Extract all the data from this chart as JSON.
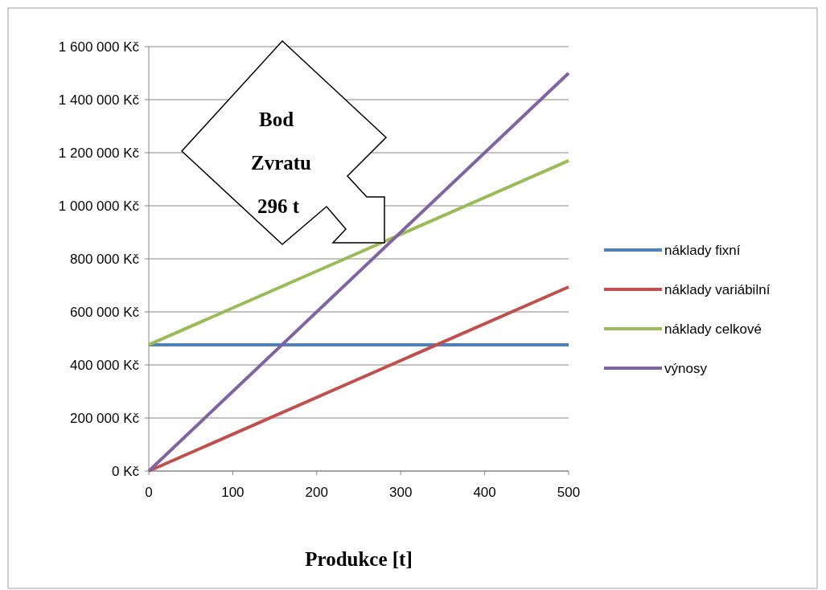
{
  "chart_data": {
    "type": "line",
    "xlabel": "Produkce [t]",
    "x": [
      0,
      500
    ],
    "series": [
      {
        "name": "náklady fixní",
        "color": "#4f81bd",
        "values": [
          476000,
          476000
        ]
      },
      {
        "name": "náklady variábilní",
        "color": "#c0504d",
        "values": [
          0,
          694000
        ]
      },
      {
        "name": "náklady celkové",
        "color": "#9bbb59",
        "values": [
          476000,
          1170000
        ]
      },
      {
        "name": "výnosy",
        "color": "#8064a2",
        "values": [
          0,
          1500000
        ]
      }
    ],
    "xlim": [
      0,
      500
    ],
    "xticks": [
      0,
      100,
      200,
      300,
      400,
      500
    ],
    "ylim": [
      0,
      1600000
    ],
    "yticks": [
      {
        "value": 0,
        "label": "0 Kč"
      },
      {
        "value": 200000,
        "label": "200 000 Kč"
      },
      {
        "value": 400000,
        "label": "400 000 Kč"
      },
      {
        "value": 600000,
        "label": "600 000 Kč"
      },
      {
        "value": 800000,
        "label": "800 000 Kč"
      },
      {
        "value": 1000000,
        "label": "1 000 000 Kč"
      },
      {
        "value": 1200000,
        "label": "1 200 000 Kč"
      },
      {
        "value": 1400000,
        "label": "1 400 000 Kč"
      },
      {
        "value": 1600000,
        "label": "1 600 000 Kč"
      }
    ],
    "grid": "y",
    "legend": "right",
    "marker": "none",
    "line_style": "solid",
    "annotations": [
      "Bod\nZvratu\n296 t"
    ]
  }
}
